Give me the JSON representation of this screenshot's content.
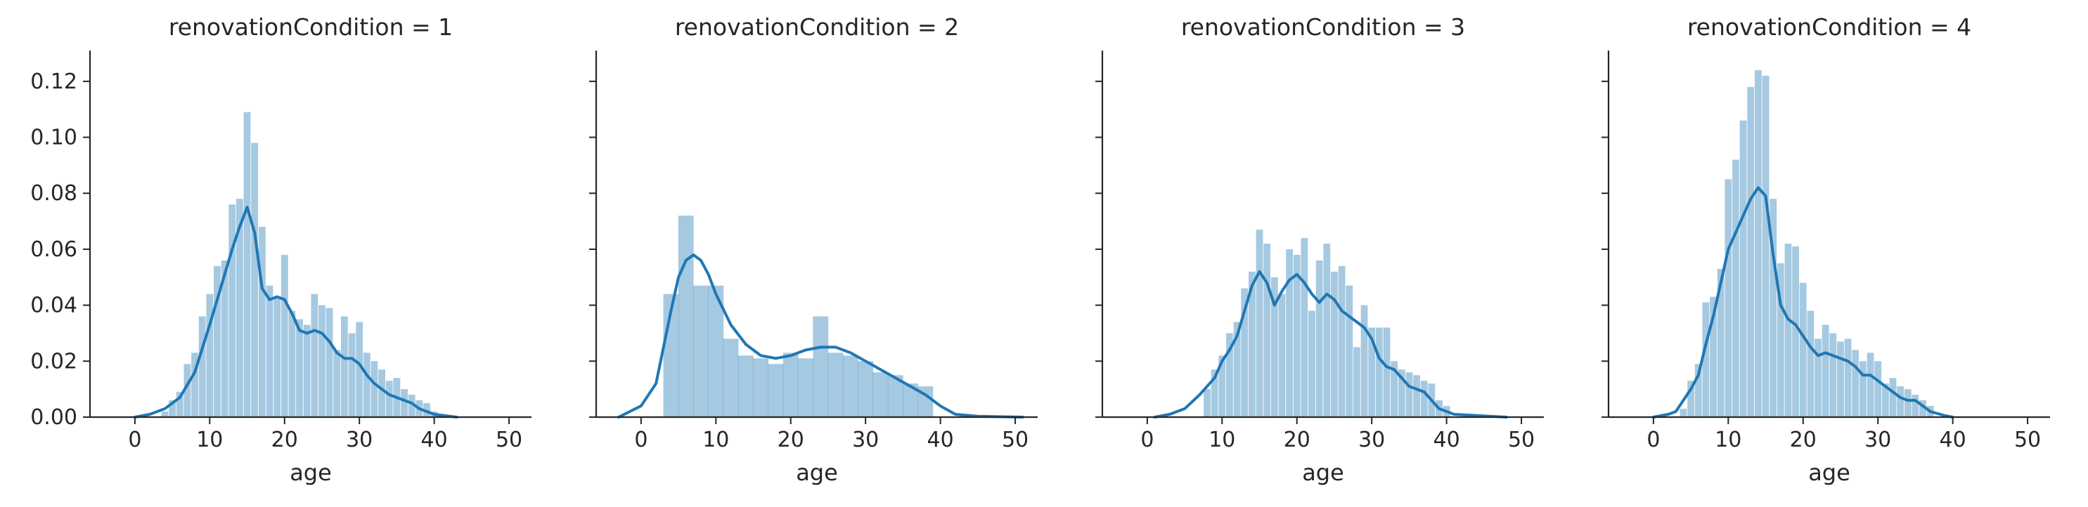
{
  "chart_data": [
    {
      "type": "bar",
      "title": "renovationCondition = 1",
      "xlabel": "age",
      "ylabel": "",
      "xlim": [
        -6,
        53
      ],
      "ylim": [
        0,
        0.131
      ],
      "xticks": [
        0,
        10,
        20,
        30,
        40,
        50
      ],
      "yticks": [
        0.0,
        0.02,
        0.04,
        0.06,
        0.08,
        0.1,
        0.12
      ],
      "ytick_labels": [
        "0.00",
        "0.02",
        "0.04",
        "0.06",
        "0.08",
        "0.10",
        "0.12"
      ],
      "grid": false,
      "color": "#1f77b4",
      "hist_bin_width": 0.92,
      "hist": [
        [
          4,
          0.002
        ],
        [
          5,
          0.006
        ],
        [
          6,
          0.009
        ],
        [
          7,
          0.019
        ],
        [
          8,
          0.023
        ],
        [
          9,
          0.036
        ],
        [
          10,
          0.044
        ],
        [
          11,
          0.054
        ],
        [
          12,
          0.056
        ],
        [
          13,
          0.076
        ],
        [
          14,
          0.078
        ],
        [
          15,
          0.109
        ],
        [
          16,
          0.098
        ],
        [
          17,
          0.068
        ],
        [
          18,
          0.047
        ],
        [
          19,
          0.043
        ],
        [
          20,
          0.058
        ],
        [
          21,
          0.038
        ],
        [
          22,
          0.035
        ],
        [
          23,
          0.033
        ],
        [
          24,
          0.044
        ],
        [
          25,
          0.04
        ],
        [
          26,
          0.039
        ],
        [
          27,
          0.024
        ],
        [
          28,
          0.036
        ],
        [
          29,
          0.03
        ],
        [
          30,
          0.034
        ],
        [
          31,
          0.023
        ],
        [
          32,
          0.02
        ],
        [
          33,
          0.017
        ],
        [
          34,
          0.013
        ],
        [
          35,
          0.014
        ],
        [
          36,
          0.01
        ],
        [
          37,
          0.008
        ],
        [
          38,
          0.006
        ],
        [
          39,
          0.005
        ],
        [
          40,
          0.002
        ]
      ],
      "kde": [
        [
          0,
          0
        ],
        [
          2,
          0.001
        ],
        [
          4,
          0.003
        ],
        [
          6,
          0.007
        ],
        [
          8,
          0.016
        ],
        [
          10,
          0.033
        ],
        [
          11,
          0.042
        ],
        [
          12,
          0.051
        ],
        [
          13,
          0.06
        ],
        [
          14,
          0.068
        ],
        [
          15,
          0.075
        ],
        [
          16,
          0.066
        ],
        [
          17,
          0.046
        ],
        [
          18,
          0.042
        ],
        [
          19,
          0.043
        ],
        [
          20,
          0.042
        ],
        [
          21,
          0.037
        ],
        [
          22,
          0.031
        ],
        [
          23,
          0.03
        ],
        [
          24,
          0.031
        ],
        [
          25,
          0.03
        ],
        [
          26,
          0.027
        ],
        [
          27,
          0.023
        ],
        [
          28,
          0.021
        ],
        [
          29,
          0.021
        ],
        [
          30,
          0.019
        ],
        [
          31,
          0.015
        ],
        [
          32,
          0.012
        ],
        [
          33,
          0.01
        ],
        [
          34,
          0.008
        ],
        [
          35,
          0.007
        ],
        [
          36,
          0.006
        ],
        [
          37,
          0.005
        ],
        [
          38,
          0.003
        ],
        [
          40,
          0.001
        ],
        [
          43,
          0
        ]
      ]
    },
    {
      "type": "bar",
      "title": "renovationCondition = 2",
      "xlabel": "age",
      "ylabel": "",
      "xlim": [
        -6,
        53
      ],
      "ylim": [
        0,
        0.131
      ],
      "xticks": [
        0,
        10,
        20,
        30,
        40,
        50
      ],
      "yticks": [
        0.0,
        0.02,
        0.04,
        0.06,
        0.08,
        0.1,
        0.12
      ],
      "grid": false,
      "color": "#1f77b4",
      "hist_bin_width": 2.05,
      "hist": [
        [
          4,
          0.044
        ],
        [
          6,
          0.072
        ],
        [
          8,
          0.047
        ],
        [
          10,
          0.047
        ],
        [
          12,
          0.028
        ],
        [
          14,
          0.022
        ],
        [
          16,
          0.021
        ],
        [
          18,
          0.019
        ],
        [
          20,
          0.023
        ],
        [
          22,
          0.021
        ],
        [
          24,
          0.036
        ],
        [
          26,
          0.023
        ],
        [
          28,
          0.022
        ],
        [
          30,
          0.02
        ],
        [
          32,
          0.016
        ],
        [
          34,
          0.015
        ],
        [
          36,
          0.012
        ],
        [
          38,
          0.011
        ]
      ],
      "kde": [
        [
          -3,
          0
        ],
        [
          0,
          0.004
        ],
        [
          2,
          0.012
        ],
        [
          4,
          0.038
        ],
        [
          5,
          0.05
        ],
        [
          6,
          0.056
        ],
        [
          7,
          0.058
        ],
        [
          8,
          0.056
        ],
        [
          9,
          0.051
        ],
        [
          10,
          0.044
        ],
        [
          12,
          0.033
        ],
        [
          14,
          0.026
        ],
        [
          16,
          0.022
        ],
        [
          18,
          0.021
        ],
        [
          20,
          0.022
        ],
        [
          22,
          0.024
        ],
        [
          24,
          0.025
        ],
        [
          26,
          0.025
        ],
        [
          28,
          0.023
        ],
        [
          30,
          0.02
        ],
        [
          32,
          0.017
        ],
        [
          34,
          0.014
        ],
        [
          36,
          0.011
        ],
        [
          38,
          0.008
        ],
        [
          40,
          0.004
        ],
        [
          42,
          0.001
        ],
        [
          45,
          0.0003
        ],
        [
          51,
          0
        ]
      ]
    },
    {
      "type": "bar",
      "title": "renovationCondition = 3",
      "xlabel": "age",
      "ylabel": "",
      "xlim": [
        -6,
        53
      ],
      "ylim": [
        0,
        0.131
      ],
      "xticks": [
        0,
        10,
        20,
        30,
        40,
        50
      ],
      "yticks": [
        0.0,
        0.02,
        0.04,
        0.06,
        0.08,
        0.1,
        0.12
      ],
      "grid": false,
      "color": "#1f77b4",
      "hist_bin_width": 0.92,
      "hist": [
        [
          8,
          0.01
        ],
        [
          9,
          0.017
        ],
        [
          10,
          0.022
        ],
        [
          11,
          0.03
        ],
        [
          12,
          0.034
        ],
        [
          13,
          0.046
        ],
        [
          14,
          0.052
        ],
        [
          15,
          0.067
        ],
        [
          16,
          0.062
        ],
        [
          17,
          0.05
        ],
        [
          18,
          0.044
        ],
        [
          19,
          0.06
        ],
        [
          20,
          0.058
        ],
        [
          21,
          0.064
        ],
        [
          22,
          0.038
        ],
        [
          23,
          0.056
        ],
        [
          24,
          0.062
        ],
        [
          25,
          0.052
        ],
        [
          26,
          0.054
        ],
        [
          27,
          0.047
        ],
        [
          28,
          0.025
        ],
        [
          29,
          0.04
        ],
        [
          30,
          0.032
        ],
        [
          31,
          0.032
        ],
        [
          32,
          0.032
        ],
        [
          33,
          0.02
        ],
        [
          34,
          0.017
        ],
        [
          35,
          0.016
        ],
        [
          36,
          0.015
        ],
        [
          37,
          0.013
        ],
        [
          38,
          0.012
        ],
        [
          39,
          0.006
        ],
        [
          40,
          0.004
        ]
      ],
      "kde": [
        [
          1,
          0
        ],
        [
          3,
          0.001
        ],
        [
          5,
          0.003
        ],
        [
          7,
          0.008
        ],
        [
          9,
          0.014
        ],
        [
          10,
          0.02
        ],
        [
          11,
          0.024
        ],
        [
          12,
          0.029
        ],
        [
          13,
          0.038
        ],
        [
          14,
          0.047
        ],
        [
          15,
          0.052
        ],
        [
          16,
          0.048
        ],
        [
          17,
          0.04
        ],
        [
          18,
          0.045
        ],
        [
          19,
          0.049
        ],
        [
          20,
          0.051
        ],
        [
          21,
          0.048
        ],
        [
          22,
          0.044
        ],
        [
          23,
          0.041
        ],
        [
          24,
          0.044
        ],
        [
          25,
          0.042
        ],
        [
          26,
          0.038
        ],
        [
          27,
          0.036
        ],
        [
          28,
          0.034
        ],
        [
          29,
          0.032
        ],
        [
          30,
          0.028
        ],
        [
          31,
          0.021
        ],
        [
          32,
          0.018
        ],
        [
          33,
          0.017
        ],
        [
          34,
          0.014
        ],
        [
          35,
          0.011
        ],
        [
          36,
          0.01
        ],
        [
          37,
          0.009
        ],
        [
          38,
          0.006
        ],
        [
          39,
          0.003
        ],
        [
          41,
          0.001
        ],
        [
          48,
          0
        ]
      ]
    },
    {
      "type": "bar",
      "title": "renovationCondition = 4",
      "xlabel": "age",
      "ylabel": "",
      "xlim": [
        -6,
        53
      ],
      "ylim": [
        0,
        0.131
      ],
      "xticks": [
        0,
        10,
        20,
        30,
        40,
        50
      ],
      "yticks": [
        0.0,
        0.02,
        0.04,
        0.06,
        0.08,
        0.1,
        0.12
      ],
      "grid": false,
      "color": "#1f77b4",
      "hist_bin_width": 0.92,
      "hist": [
        [
          4,
          0.003
        ],
        [
          5,
          0.013
        ],
        [
          6,
          0.019
        ],
        [
          7,
          0.041
        ],
        [
          8,
          0.043
        ],
        [
          9,
          0.053
        ],
        [
          10,
          0.085
        ],
        [
          11,
          0.092
        ],
        [
          12,
          0.106
        ],
        [
          13,
          0.118
        ],
        [
          14,
          0.124
        ],
        [
          15,
          0.122
        ],
        [
          16,
          0.078
        ],
        [
          17,
          0.055
        ],
        [
          18,
          0.062
        ],
        [
          19,
          0.061
        ],
        [
          20,
          0.048
        ],
        [
          21,
          0.038
        ],
        [
          22,
          0.028
        ],
        [
          23,
          0.033
        ],
        [
          24,
          0.03
        ],
        [
          25,
          0.027
        ],
        [
          26,
          0.028
        ],
        [
          27,
          0.024
        ],
        [
          28,
          0.02
        ],
        [
          29,
          0.023
        ],
        [
          30,
          0.02
        ],
        [
          31,
          0.012
        ],
        [
          32,
          0.014
        ],
        [
          33,
          0.011
        ],
        [
          34,
          0.01
        ],
        [
          35,
          0.008
        ],
        [
          36,
          0.006
        ],
        [
          37,
          0.004
        ]
      ],
      "kde": [
        [
          0,
          0
        ],
        [
          2,
          0.001
        ],
        [
          3,
          0.002
        ],
        [
          4,
          0.006
        ],
        [
          5,
          0.01
        ],
        [
          6,
          0.015
        ],
        [
          7,
          0.026
        ],
        [
          8,
          0.036
        ],
        [
          9,
          0.048
        ],
        [
          10,
          0.06
        ],
        [
          11,
          0.066
        ],
        [
          12,
          0.072
        ],
        [
          13,
          0.078
        ],
        [
          14,
          0.082
        ],
        [
          15,
          0.079
        ],
        [
          16,
          0.058
        ],
        [
          17,
          0.04
        ],
        [
          18,
          0.035
        ],
        [
          19,
          0.033
        ],
        [
          20,
          0.029
        ],
        [
          21,
          0.025
        ],
        [
          22,
          0.022
        ],
        [
          23,
          0.023
        ],
        [
          24,
          0.022
        ],
        [
          25,
          0.021
        ],
        [
          26,
          0.02
        ],
        [
          27,
          0.018
        ],
        [
          28,
          0.015
        ],
        [
          29,
          0.015
        ],
        [
          30,
          0.013
        ],
        [
          31,
          0.011
        ],
        [
          32,
          0.009
        ],
        [
          33,
          0.007
        ],
        [
          34,
          0.006
        ],
        [
          35,
          0.006
        ],
        [
          36,
          0.004
        ],
        [
          37,
          0.002
        ],
        [
          39,
          0.0005
        ],
        [
          40,
          0
        ]
      ]
    }
  ]
}
